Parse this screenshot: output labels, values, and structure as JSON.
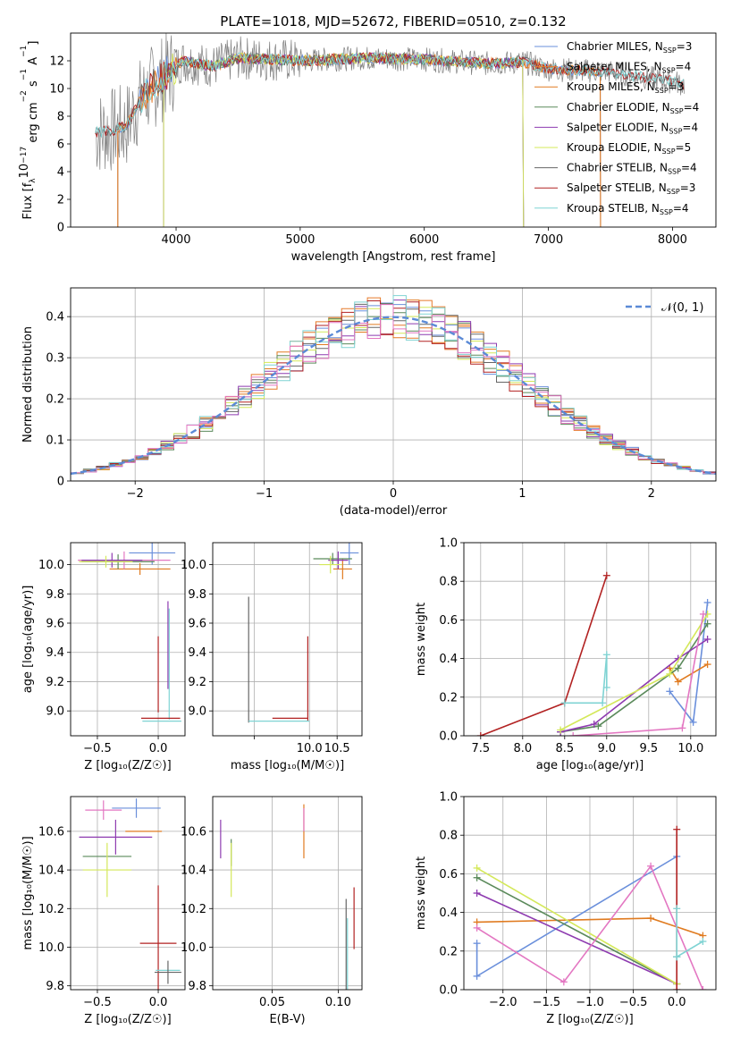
{
  "figure_title": "PLATE=1018, MJD=52672, FIBERID=0510, z=0.132",
  "colors": {
    "chabrier_miles": "#6a8fdb",
    "salpeter_miles": "#e67a2b",
    "kroupa_miles": "#e07b20",
    "chabrier_elodie": "#5b8a5b",
    "salpeter_elodie": "#8e3bb0",
    "kroupa_elodie": "#d4e85a",
    "chabrier_stelib": "#666666",
    "salpeter_stelib": "#b22222",
    "kroupa_stelib": "#7fd3d3",
    "pink": "#e377c2",
    "gaussian": "#5b8ad6",
    "grid": "#b0b0b0",
    "data_spectrum": "#808080"
  },
  "chart_data": [
    {
      "id": "spectrum",
      "type": "line",
      "title": "PLATE=1018, MJD=52672, FIBERID=0510, z=0.132",
      "xlabel": "wavelength [Angstrom, rest frame]",
      "ylabel_parts": [
        "Flux [f",
        "λ",
        "10",
        "−17",
        " erg cm",
        "−2",
        " s",
        "−1",
        " A",
        "−1",
        "]"
      ],
      "xlim": [
        3150,
        8350
      ],
      "ylim": [
        0,
        14
      ],
      "xticks": [
        4000,
        5000,
        6000,
        7000,
        8000
      ],
      "yticks": [
        0,
        2,
        4,
        6,
        8,
        10,
        12
      ],
      "grid": false,
      "legend_position": "right",
      "legend": [
        {
          "pre": "Chabrier MILES, N",
          "sub": "SSP",
          "post": "=3",
          "color": "#6a8fdb"
        },
        {
          "pre": "Salpeter MILES, N",
          "sub": "SSP",
          "post": "=4",
          "color": "#e67a2b"
        },
        {
          "pre": "Kroupa MILES, N",
          "sub": "SSP",
          "post": "=3",
          "color": "#e07b20"
        },
        {
          "pre": "Chabrier ELODIE, N",
          "sub": "SSP",
          "post": "=4",
          "color": "#5b8a5b"
        },
        {
          "pre": "Salpeter ELODIE, N",
          "sub": "SSP",
          "post": "=4",
          "color": "#8e3bb0"
        },
        {
          "pre": "Kroupa ELODIE, N",
          "sub": "SSP",
          "post": "=5",
          "color": "#d4e85a"
        },
        {
          "pre": "Chabrier STELIB, N",
          "sub": "SSP",
          "post": "=4",
          "color": "#666666"
        },
        {
          "pre": "Salpeter STELIB, N",
          "sub": "SSP",
          "post": "=3",
          "color": "#b22222"
        },
        {
          "pre": "Kroupa STELIB, N",
          "sub": "SSP",
          "post": "=4",
          "color": "#7fd3d3"
        }
      ],
      "data_range": [
        3350,
        8100
      ],
      "model_ranges": {
        "miles": [
          3530,
          7420
        ],
        "elodie": [
          3900,
          6800
        ],
        "stelib": [
          3350,
          8100
        ]
      },
      "continuum_points": [
        [
          3350,
          6.8
        ],
        [
          3500,
          7.0
        ],
        [
          3600,
          7.3
        ],
        [
          3700,
          9.0
        ],
        [
          3800,
          10.0
        ],
        [
          3950,
          11.2
        ],
        [
          4050,
          12.0
        ],
        [
          4300,
          11.6
        ],
        [
          4500,
          12.2
        ],
        [
          5000,
          12.0
        ],
        [
          5500,
          12.2
        ],
        [
          6000,
          12.1
        ],
        [
          6500,
          11.8
        ],
        [
          6800,
          11.9
        ],
        [
          7000,
          11.4
        ],
        [
          7500,
          11.2
        ],
        [
          8000,
          10.5
        ],
        [
          8100,
          10.3
        ]
      ]
    },
    {
      "id": "residuals",
      "type": "histogram",
      "xlabel": "(data-model)/error",
      "ylabel": "Normed distribution",
      "xlim": [
        -2.5,
        2.5
      ],
      "ylim": [
        0,
        0.47
      ],
      "xticks": [
        -2,
        -1,
        0,
        1,
        2
      ],
      "yticks": [
        0.0,
        0.1,
        0.2,
        0.3,
        0.4
      ],
      "grid": true,
      "legend_position": "top-right",
      "legend": [
        {
          "label": "𝒩(0, 1)",
          "style": "dashed",
          "color": "#5b8ad6"
        }
      ],
      "bin_width": 0.1,
      "curve": {
        "mean": 0,
        "sigma": 1
      }
    },
    {
      "id": "age_vs_Z",
      "type": "errorbar",
      "xlabel": "Z [log₁₀(Z/Z☉)]",
      "ylabel": "age  [log₁₀(age/yr)]",
      "xlim": [
        -0.72,
        0.22
      ],
      "ylim": [
        8.83,
        10.15
      ],
      "xticks": [
        -0.5,
        0.0
      ],
      "yticks": [
        9.0,
        9.2,
        9.4,
        9.6,
        9.8,
        10.0
      ],
      "grid": true,
      "points": [
        {
          "x": -0.05,
          "y": 10.08,
          "xerr": 0.19,
          "yerr": 0.08,
          "color": "#6a8fdb"
        },
        {
          "x": -0.15,
          "y": 9.97,
          "xerr": 0.25,
          "yerr": 0.04,
          "color": "#e07b20"
        },
        {
          "x": -0.28,
          "y": 10.03,
          "xerr": 0.38,
          "yerr": 0.06,
          "color": "#e377c2"
        },
        {
          "x": -0.33,
          "y": 10.02,
          "xerr": 0.3,
          "yerr": 0.05,
          "color": "#5b8a5b"
        },
        {
          "x": -0.38,
          "y": 10.03,
          "xerr": 0.25,
          "yerr": 0.05,
          "color": "#8e3bb0"
        },
        {
          "x": -0.43,
          "y": 10.02,
          "xerr": 0.22,
          "yerr": 0.04,
          "color": "#d4e85a"
        },
        {
          "x": 0.08,
          "y": 9.45,
          "xerr": 0.0,
          "yerr": 0.3,
          "color": "#8e3bb0"
        },
        {
          "x": 0.0,
          "y": 9.25,
          "xerr": 0.0,
          "yerr": 0.26,
          "color": "#b22222"
        },
        {
          "x": 0.09,
          "y": 9.32,
          "xerr": 0.0,
          "yerr": 0.38,
          "color": "#7fd3d3"
        },
        {
          "x": 0.02,
          "y": 8.95,
          "xerr": 0.16,
          "yerr": 0.0,
          "color": "#b22222"
        },
        {
          "x": 0.03,
          "y": 8.93,
          "xerr": 0.16,
          "yerr": 0.0,
          "color": "#7fd3d3"
        }
      ]
    },
    {
      "id": "age_vs_mass",
      "type": "errorbar",
      "xlabel": "mass [log₁₀(M/M☉)]",
      "ylabel": "",
      "xlim": [
        8.25,
        10.95
      ],
      "ylim": [
        8.83,
        10.15
      ],
      "xticks": [
        9.0,
        10.0,
        10.5
      ],
      "xtick_labels": [
        "",
        "10.0",
        "10.5"
      ],
      "yticks": [
        9.0,
        9.2,
        9.4,
        9.6,
        9.8,
        10.0
      ],
      "grid": true,
      "points": [
        {
          "x": 10.72,
          "y": 10.08,
          "xerr": 0.17,
          "yerr": 0.08,
          "color": "#6a8fdb"
        },
        {
          "x": 10.6,
          "y": 9.97,
          "xerr": 0.17,
          "yerr": 0.07,
          "color": "#e07b20"
        },
        {
          "x": 10.42,
          "y": 10.04,
          "xerr": 0.35,
          "yerr": 0.04,
          "color": "#5b8a5b"
        },
        {
          "x": 10.52,
          "y": 10.03,
          "xerr": 0.18,
          "yerr": 0.06,
          "color": "#8e3bb0"
        },
        {
          "x": 10.38,
          "y": 10.0,
          "xerr": 0.2,
          "yerr": 0.06,
          "color": "#d4e85a"
        },
        {
          "x": 8.9,
          "y": 9.35,
          "xerr": 0.0,
          "yerr": 0.43,
          "color": "#666666"
        },
        {
          "x": 9.97,
          "y": 9.22,
          "xerr": 0.0,
          "yerr": 0.29,
          "color": "#b22222"
        },
        {
          "x": 9.65,
          "y": 8.95,
          "xerr": 0.32,
          "yerr": 0.0,
          "color": "#b22222"
        },
        {
          "x": 9.45,
          "y": 8.93,
          "xerr": 0.55,
          "yerr": 0.0,
          "color": "#7fd3d3"
        }
      ]
    },
    {
      "id": "weight_vs_age",
      "type": "line",
      "xlabel": "age  [log₁₀(age/yr)]",
      "ylabel": "mass weight",
      "xlim": [
        7.3,
        10.3
      ],
      "ylim": [
        0,
        1.0
      ],
      "xticks": [
        7.5,
        8.0,
        8.5,
        9.0,
        9.5,
        10.0
      ],
      "yticks": [
        0.0,
        0.2,
        0.4,
        0.6,
        0.8,
        1.0
      ],
      "grid": true,
      "series": [
        {
          "color": "#b22222",
          "x": [
            7.5,
            8.5,
            9.0
          ],
          "y": [
            0.0,
            0.17,
            0.83
          ]
        },
        {
          "color": "#7fd3d3",
          "x": [
            8.5,
            8.95,
            9.0,
            9.0
          ],
          "y": [
            0.17,
            0.17,
            0.42,
            0.25
          ]
        },
        {
          "color": "#6a8fdb",
          "x": [
            9.75,
            10.03,
            10.2
          ],
          "y": [
            0.23,
            0.07,
            0.69
          ]
        },
        {
          "color": "#e07b20",
          "x": [
            9.75,
            9.85,
            10.2
          ],
          "y": [
            0.35,
            0.28,
            0.37
          ]
        },
        {
          "color": "#5b8a5b",
          "x": [
            8.45,
            8.9,
            9.85,
            10.2
          ],
          "y": [
            0.02,
            0.05,
            0.35,
            0.58
          ]
        },
        {
          "color": "#8e3bb0",
          "x": [
            8.45,
            8.85,
            9.85,
            10.2
          ],
          "y": [
            0.02,
            0.06,
            0.4,
            0.5
          ]
        },
        {
          "color": "#d4e85a",
          "x": [
            8.45,
            9.75,
            10.2
          ],
          "y": [
            0.03,
            0.32,
            0.63
          ]
        },
        {
          "color": "#e377c2",
          "x": [
            8.6,
            9.9,
            10.15
          ],
          "y": [
            0.0,
            0.04,
            0.63
          ]
        }
      ]
    },
    {
      "id": "mass_vs_Z",
      "type": "errorbar",
      "xlabel": "Z [log₁₀(Z/Z☉)]",
      "ylabel": "mass [log₁₀(M/M☉)]",
      "xlim": [
        -0.72,
        0.22
      ],
      "ylim": [
        9.78,
        10.78
      ],
      "xticks": [
        -0.5,
        0.0
      ],
      "yticks": [
        9.8,
        10.0,
        10.2,
        10.4,
        10.6
      ],
      "grid": true,
      "points": [
        {
          "x": -0.18,
          "y": 10.72,
          "xerr": 0.2,
          "yerr": 0.05,
          "color": "#6a8fdb"
        },
        {
          "x": -0.45,
          "y": 10.71,
          "xerr": 0.15,
          "yerr": 0.05,
          "color": "#e377c2"
        },
        {
          "x": -0.12,
          "y": 10.6,
          "xerr": 0.15,
          "yerr": 0.0,
          "color": "#e07b20"
        },
        {
          "x": -0.35,
          "y": 10.57,
          "xerr": 0.3,
          "yerr": 0.09,
          "color": "#8e3bb0"
        },
        {
          "x": -0.42,
          "y": 10.47,
          "xerr": 0.2,
          "yerr": 0.0,
          "color": "#5b8a5b"
        },
        {
          "x": -0.42,
          "y": 10.4,
          "xerr": 0.2,
          "yerr": 0.14,
          "color": "#d4e85a"
        },
        {
          "x": 0.0,
          "y": 10.02,
          "xerr": 0.15,
          "yerr": 0.3,
          "color": "#b22222"
        },
        {
          "x": 0.08,
          "y": 9.88,
          "xerr": 0.1,
          "yerr": 0.0,
          "color": "#7fd3d3"
        },
        {
          "x": 0.08,
          "y": 9.87,
          "xerr": 0.11,
          "yerr": 0.06,
          "color": "#666666"
        }
      ]
    },
    {
      "id": "mass_vs_ebv",
      "type": "errorbar",
      "xlabel": "E(B-V)",
      "ylabel": "",
      "xlim": [
        0.005,
        0.118
      ],
      "ylim": [
        9.78,
        10.78
      ],
      "xticks": [
        0.05,
        0.1
      ],
      "xtick_labels": [
        "0.05",
        "0.10"
      ],
      "yticks": [
        9.8,
        10.0,
        10.2,
        10.4,
        10.6
      ],
      "grid": true,
      "points": [
        {
          "x": 0.074,
          "y": 10.6,
          "xerr": 0,
          "yerr": 0.14,
          "color": "#e07b20"
        },
        {
          "x": 0.074,
          "y": 10.66,
          "xerr": 0,
          "yerr": 0.06,
          "color": "#e377c2"
        },
        {
          "x": 0.011,
          "y": 10.56,
          "xerr": 0,
          "yerr": 0.1,
          "color": "#8e3bb0"
        },
        {
          "x": 0.019,
          "y": 10.49,
          "xerr": 0,
          "yerr": 0.07,
          "color": "#5b8a5b"
        },
        {
          "x": 0.019,
          "y": 10.4,
          "xerr": 0,
          "yerr": 0.14,
          "color": "#d4e85a"
        },
        {
          "x": 0.112,
          "y": 10.15,
          "xerr": 0,
          "yerr": 0.16,
          "color": "#b22222"
        },
        {
          "x": 0.106,
          "y": 10.0,
          "xerr": 0,
          "yerr": 0.25,
          "color": "#666666"
        },
        {
          "x": 0.107,
          "y": 9.95,
          "xerr": 0,
          "yerr": 0.2,
          "color": "#7fd3d3"
        }
      ]
    },
    {
      "id": "weight_vs_Z",
      "type": "line",
      "xlabel": "Z [log₁₀(Z/Z☉)]",
      "ylabel": "mass weight",
      "xlim": [
        -2.45,
        0.45
      ],
      "ylim": [
        0,
        1.0
      ],
      "xticks": [
        -2.0,
        -1.5,
        -1.0,
        -0.5,
        0.0
      ],
      "yticks": [
        0.0,
        0.2,
        0.4,
        0.6,
        0.8,
        1.0
      ],
      "grid": true,
      "series": [
        {
          "color": "#6a8fdb",
          "x": [
            -2.3,
            -2.3,
            0.0
          ],
          "y": [
            0.24,
            0.07,
            0.69
          ]
        },
        {
          "color": "#e07b20",
          "x": [
            -2.3,
            -0.3,
            0.3
          ],
          "y": [
            0.35,
            0.37,
            0.28
          ]
        },
        {
          "color": "#5b8a5b",
          "x": [
            -2.3,
            0.0
          ],
          "y": [
            0.58,
            0.03
          ]
        },
        {
          "color": "#8e3bb0",
          "x": [
            -2.3,
            0.0
          ],
          "y": [
            0.5,
            0.03
          ]
        },
        {
          "color": "#d4e85a",
          "x": [
            -2.3,
            0.0
          ],
          "y": [
            0.63,
            0.03
          ]
        },
        {
          "color": "#e377c2",
          "x": [
            -2.3,
            -1.3,
            -0.3,
            0.3
          ],
          "y": [
            0.32,
            0.04,
            0.64,
            0.0
          ]
        },
        {
          "color": "#b22222",
          "x": [
            0.0,
            0.0,
            0.0
          ],
          "y": [
            0.83,
            0.0,
            0.17
          ]
        },
        {
          "color": "#7fd3d3",
          "x": [
            0.0,
            0.0,
            0.0,
            0.3
          ],
          "y": [
            0.42,
            0.17,
            0.17,
            0.25
          ]
        }
      ]
    }
  ]
}
